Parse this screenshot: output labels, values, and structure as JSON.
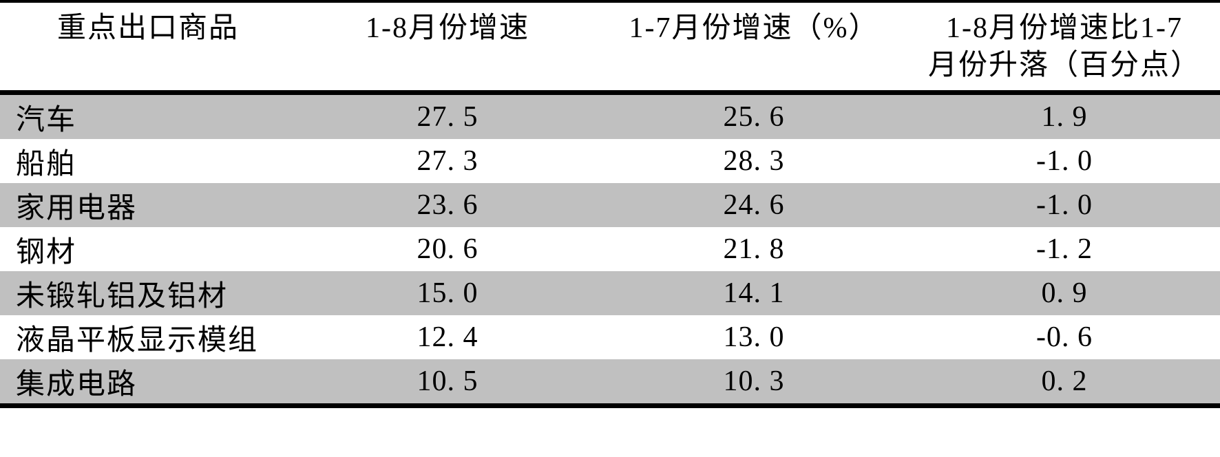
{
  "table": {
    "header": {
      "commodity": "重点出口商品",
      "growth_1_8": "1-8月份增速",
      "growth_1_7": "1-7月份增速（%）",
      "change_line1": "1-8月份增速比1-7",
      "change_line2": "月份升落（百分点）"
    },
    "rows": [
      {
        "name": "汽车",
        "g18": "27. 5",
        "g17": "25. 6",
        "diff": "1. 9"
      },
      {
        "name": "船舶",
        "g18": "27. 3",
        "g17": "28. 3",
        "diff": "-1. 0"
      },
      {
        "name": "家用电器",
        "g18": "23. 6",
        "g17": "24. 6",
        "diff": "-1. 0"
      },
      {
        "name": "钢材",
        "g18": "20. 6",
        "g17": "21. 8",
        "diff": "-1. 2"
      },
      {
        "name": "未锻轧铝及铝材",
        "g18": "15. 0",
        "g17": "14. 1",
        "diff": "0. 9"
      },
      {
        "name": "液晶平板显示模组",
        "g18": "12. 4",
        "g17": "13. 0",
        "diff": "-0. 6"
      },
      {
        "name": "集成电路",
        "g18": "10. 5",
        "g17": "10. 3",
        "diff": "0. 2"
      }
    ]
  },
  "colors": {
    "row_stripe": "#c0c0c0",
    "rule": "#000000",
    "background": "#ffffff",
    "text": "#000000"
  },
  "chart_data": {
    "type": "table",
    "title": "重点出口商品增速表",
    "columns": [
      "重点出口商品",
      "1-8月份增速",
      "1-7月份增速（%）",
      "1-8月份增速比1-7月份升落（百分点）"
    ],
    "rows": [
      [
        "汽车",
        27.5,
        25.6,
        1.9
      ],
      [
        "船舶",
        27.3,
        28.3,
        -1.0
      ],
      [
        "家用电器",
        23.6,
        24.6,
        -1.0
      ],
      [
        "钢材",
        20.6,
        21.8,
        -1.2
      ],
      [
        "未锻轧铝及铝材",
        15.0,
        14.1,
        0.9
      ],
      [
        "液晶平板显示模组",
        12.4,
        13.0,
        -0.6
      ],
      [
        "集成电路",
        10.5,
        10.3,
        0.2
      ]
    ]
  }
}
